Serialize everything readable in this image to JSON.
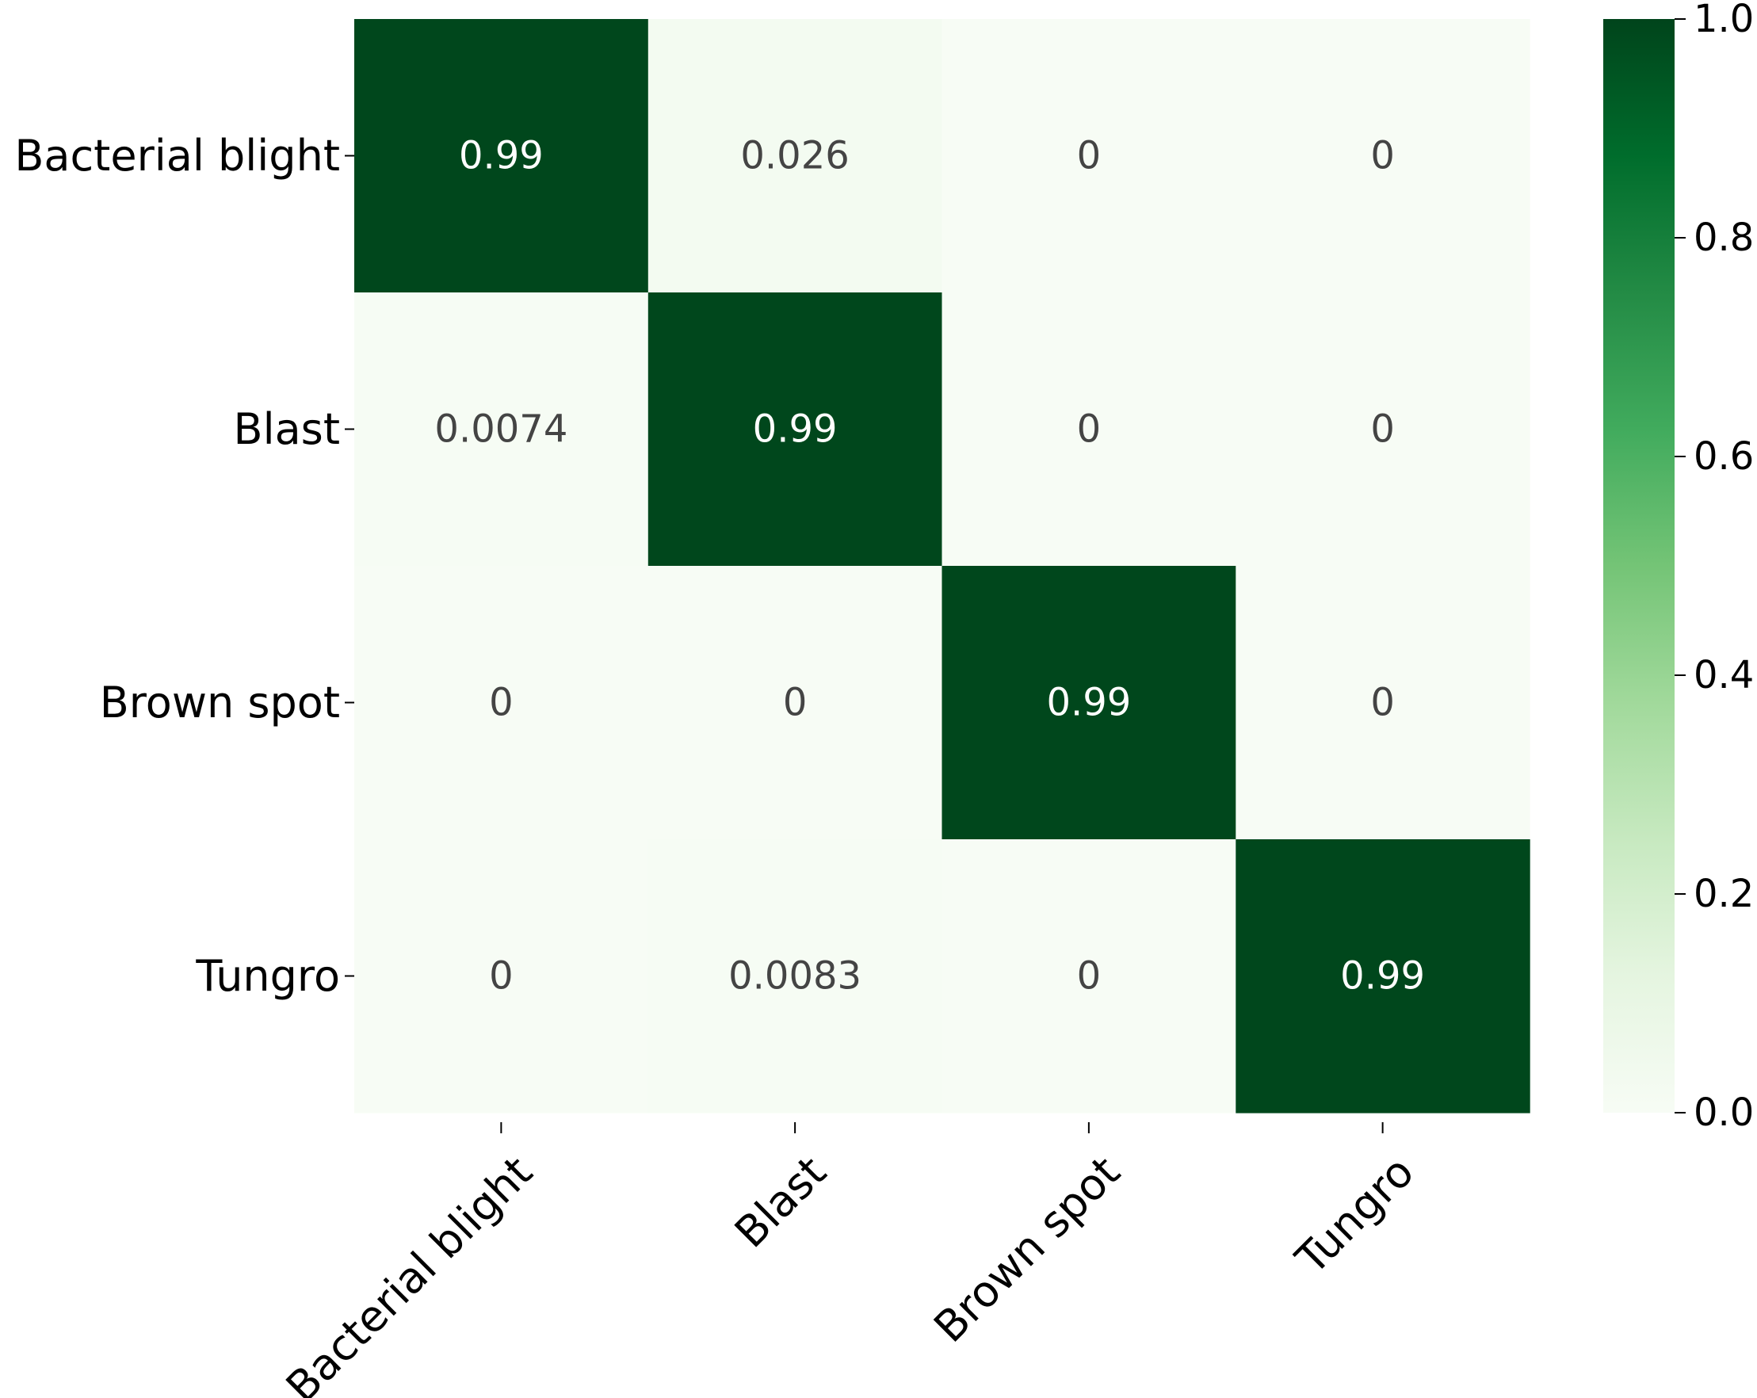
{
  "chart_data": {
    "type": "heatmap",
    "title": "",
    "xlabel": "",
    "ylabel": "",
    "row_labels": [
      "Bacterial blight",
      "Blast",
      "Brown spot",
      "Tungro"
    ],
    "col_labels": [
      "Bacterial blight",
      "Blast",
      "Brown spot",
      "Tungro"
    ],
    "values": [
      [
        0.99,
        0.026,
        0,
        0
      ],
      [
        0.0074,
        0.99,
        0,
        0
      ],
      [
        0,
        0,
        0.99,
        0
      ],
      [
        0,
        0.0083,
        0,
        0.99
      ]
    ],
    "cell_labels": [
      [
        "0.99",
        "0.026",
        "0",
        "0"
      ],
      [
        "0.0074",
        "0.99",
        "0",
        "0"
      ],
      [
        "0",
        "0",
        "0.99",
        "0"
      ],
      [
        "0",
        "0.0083",
        "0",
        "0.99"
      ]
    ],
    "colorbar": {
      "range": [
        0.0,
        1.0
      ],
      "ticks": [
        "0.0",
        "0.2",
        "0.4",
        "0.6",
        "0.8",
        "1.0"
      ],
      "colormap": "Greens",
      "low_color": "#f7fcf5",
      "high_color": "#00441b"
    },
    "grid": false,
    "legend": "colorbar-right"
  }
}
